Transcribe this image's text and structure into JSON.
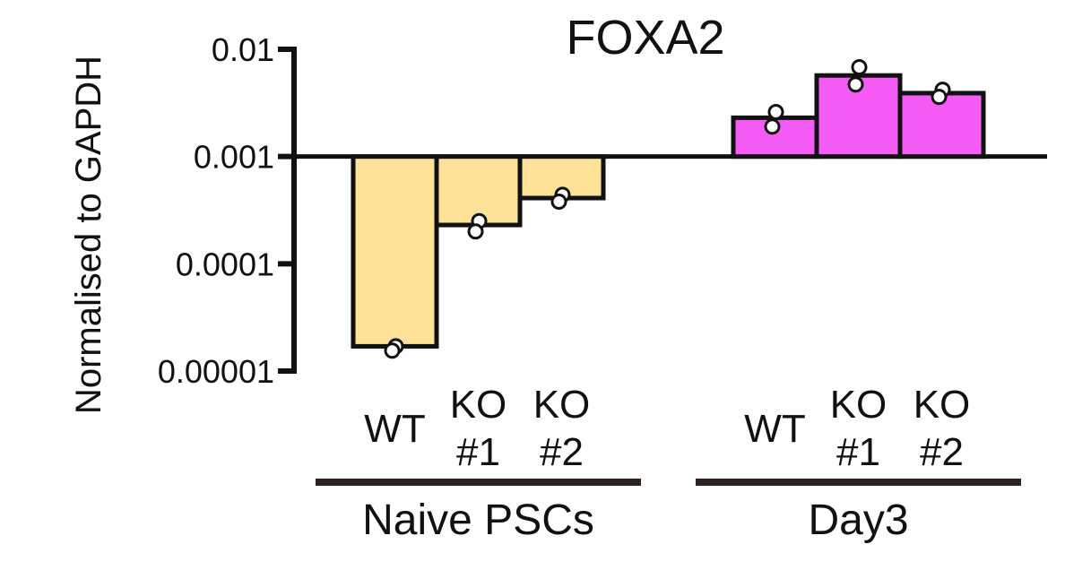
{
  "chart_data": {
    "type": "bar",
    "title": "FOXA2",
    "ylabel": "Normalised to GAPDH",
    "xlabel": "",
    "yscale": "log",
    "ylim": [
      1e-05,
      0.01
    ],
    "baseline": 0.001,
    "yticks": [
      {
        "value": 0.01,
        "label": "0.01"
      },
      {
        "value": 0.001,
        "label": "0.001"
      },
      {
        "value": 0.0001,
        "label": "0.0001"
      },
      {
        "value": 1e-05,
        "label": "0.00001"
      }
    ],
    "groups": [
      {
        "label": "Naive PSCs",
        "color": "#FCE197",
        "bars": [
          {
            "label_lines": [
              "WT"
            ],
            "value": 1.7e-05,
            "points": [
              1.7e-05,
              1.55e-05
            ]
          },
          {
            "label_lines": [
              "KO",
              "#1"
            ],
            "value": 0.00023,
            "points": [
              0.00025,
              0.0002
            ]
          },
          {
            "label_lines": [
              "KO",
              "#2"
            ],
            "value": 0.00041,
            "points": [
              0.00044,
              0.00038
            ]
          }
        ]
      },
      {
        "label": "Day3",
        "color": "#F55CF5",
        "bars": [
          {
            "label_lines": [
              "WT"
            ],
            "value": 0.0023,
            "points": [
              0.0026,
              0.0019
            ]
          },
          {
            "label_lines": [
              "KO",
              "#1"
            ],
            "value": 0.0057,
            "points": [
              0.0068,
              0.0047
            ]
          },
          {
            "label_lines": [
              "KO",
              "#2"
            ],
            "value": 0.0039,
            "points": [
              0.0042,
              0.0036
            ]
          }
        ]
      }
    ],
    "grid": false,
    "legend": "none"
  }
}
